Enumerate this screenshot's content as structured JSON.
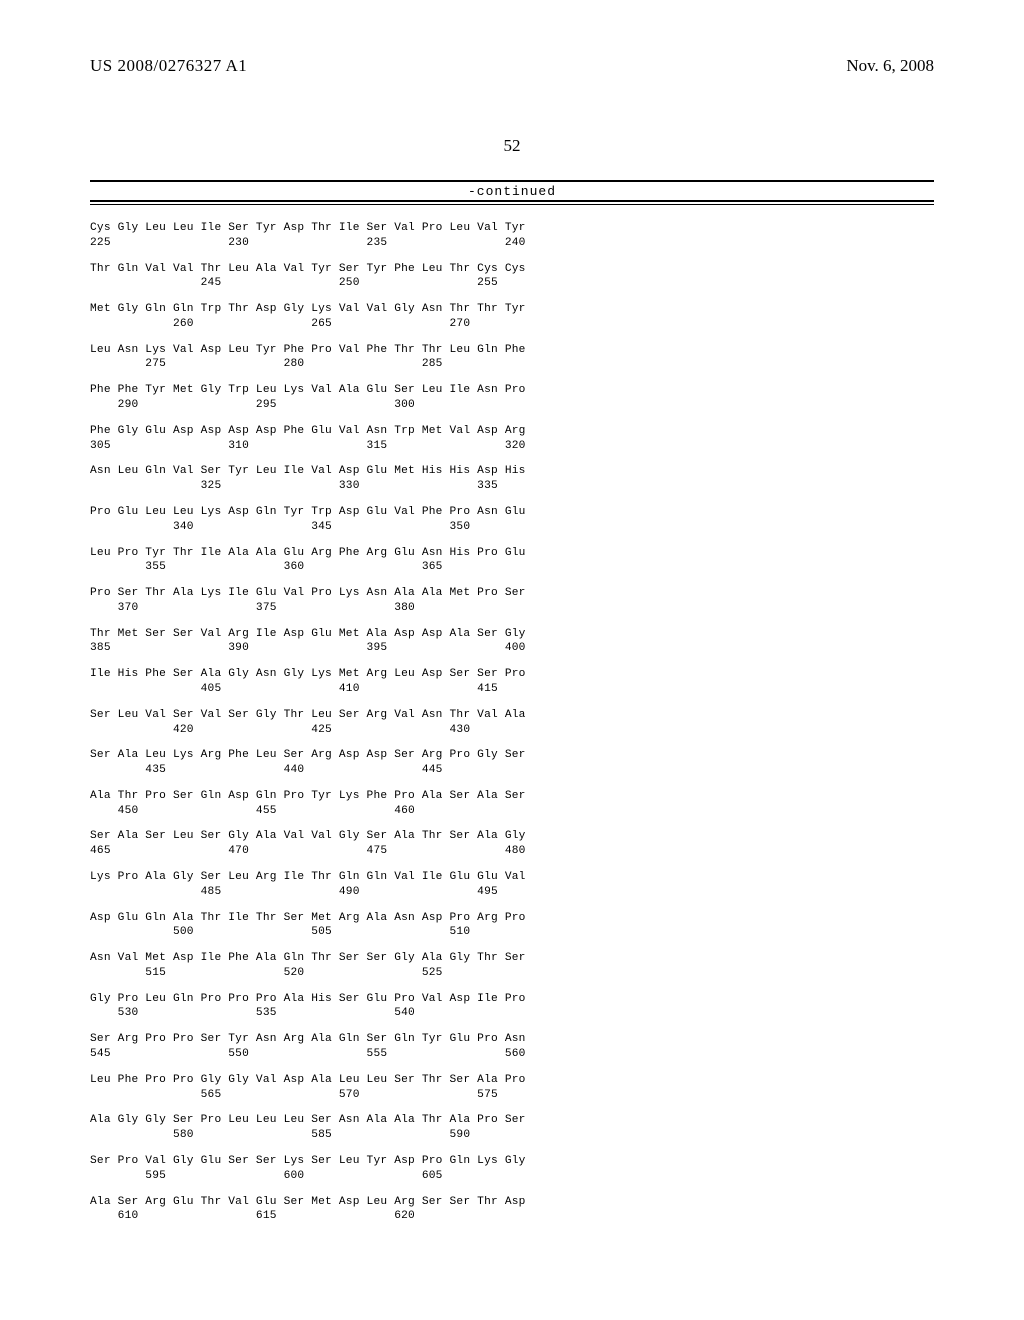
{
  "header": {
    "publication_number": "US 2008/0276327 A1",
    "publication_date": "Nov. 6, 2008"
  },
  "page_number": "52",
  "continued_label": "-continued",
  "sequence": {
    "columns": 16,
    "col_width_chars": 4,
    "rows": [
      {
        "start": 225,
        "aa": [
          "Cys",
          "Gly",
          "Leu",
          "Leu",
          "Ile",
          "Ser",
          "Tyr",
          "Asp",
          "Thr",
          "Ile",
          "Ser",
          "Val",
          "Pro",
          "Leu",
          "Val",
          "Tyr"
        ]
      },
      {
        "start": 241,
        "aa": [
          "Thr",
          "Gln",
          "Val",
          "Val",
          "Thr",
          "Leu",
          "Ala",
          "Val",
          "Tyr",
          "Ser",
          "Tyr",
          "Phe",
          "Leu",
          "Thr",
          "Cys",
          "Cys"
        ]
      },
      {
        "start": 257,
        "aa": [
          "Met",
          "Gly",
          "Gln",
          "Gln",
          "Trp",
          "Thr",
          "Asp",
          "Gly",
          "Lys",
          "Val",
          "Val",
          "Gly",
          "Asn",
          "Thr",
          "Thr",
          "Tyr"
        ]
      },
      {
        "start": 273,
        "aa": [
          "Leu",
          "Asn",
          "Lys",
          "Val",
          "Asp",
          "Leu",
          "Tyr",
          "Phe",
          "Pro",
          "Val",
          "Phe",
          "Thr",
          "Thr",
          "Leu",
          "Gln",
          "Phe"
        ]
      },
      {
        "start": 289,
        "aa": [
          "Phe",
          "Phe",
          "Tyr",
          "Met",
          "Gly",
          "Trp",
          "Leu",
          "Lys",
          "Val",
          "Ala",
          "Glu",
          "Ser",
          "Leu",
          "Ile",
          "Asn",
          "Pro"
        ]
      },
      {
        "start": 305,
        "aa": [
          "Phe",
          "Gly",
          "Glu",
          "Asp",
          "Asp",
          "Asp",
          "Asp",
          "Phe",
          "Glu",
          "Val",
          "Asn",
          "Trp",
          "Met",
          "Val",
          "Asp",
          "Arg"
        ]
      },
      {
        "start": 321,
        "aa": [
          "Asn",
          "Leu",
          "Gln",
          "Val",
          "Ser",
          "Tyr",
          "Leu",
          "Ile",
          "Val",
          "Asp",
          "Glu",
          "Met",
          "His",
          "His",
          "Asp",
          "His"
        ]
      },
      {
        "start": 337,
        "aa": [
          "Pro",
          "Glu",
          "Leu",
          "Leu",
          "Lys",
          "Asp",
          "Gln",
          "Tyr",
          "Trp",
          "Asp",
          "Glu",
          "Val",
          "Phe",
          "Pro",
          "Asn",
          "Glu"
        ]
      },
      {
        "start": 353,
        "aa": [
          "Leu",
          "Pro",
          "Tyr",
          "Thr",
          "Ile",
          "Ala",
          "Ala",
          "Glu",
          "Arg",
          "Phe",
          "Arg",
          "Glu",
          "Asn",
          "His",
          "Pro",
          "Glu"
        ]
      },
      {
        "start": 369,
        "aa": [
          "Pro",
          "Ser",
          "Thr",
          "Ala",
          "Lys",
          "Ile",
          "Glu",
          "Val",
          "Pro",
          "Lys",
          "Asn",
          "Ala",
          "Ala",
          "Met",
          "Pro",
          "Ser"
        ]
      },
      {
        "start": 385,
        "aa": [
          "Thr",
          "Met",
          "Ser",
          "Ser",
          "Val",
          "Arg",
          "Ile",
          "Asp",
          "Glu",
          "Met",
          "Ala",
          "Asp",
          "Asp",
          "Ala",
          "Ser",
          "Gly"
        ]
      },
      {
        "start": 401,
        "aa": [
          "Ile",
          "His",
          "Phe",
          "Ser",
          "Ala",
          "Gly",
          "Asn",
          "Gly",
          "Lys",
          "Met",
          "Arg",
          "Leu",
          "Asp",
          "Ser",
          "Ser",
          "Pro"
        ]
      },
      {
        "start": 417,
        "aa": [
          "Ser",
          "Leu",
          "Val",
          "Ser",
          "Val",
          "Ser",
          "Gly",
          "Thr",
          "Leu",
          "Ser",
          "Arg",
          "Val",
          "Asn",
          "Thr",
          "Val",
          "Ala"
        ]
      },
      {
        "start": 433,
        "aa": [
          "Ser",
          "Ala",
          "Leu",
          "Lys",
          "Arg",
          "Phe",
          "Leu",
          "Ser",
          "Arg",
          "Asp",
          "Asp",
          "Ser",
          "Arg",
          "Pro",
          "Gly",
          "Ser"
        ]
      },
      {
        "start": 449,
        "aa": [
          "Ala",
          "Thr",
          "Pro",
          "Ser",
          "Gln",
          "Asp",
          "Gln",
          "Pro",
          "Tyr",
          "Lys",
          "Phe",
          "Pro",
          "Ala",
          "Ser",
          "Ala",
          "Ser"
        ]
      },
      {
        "start": 465,
        "aa": [
          "Ser",
          "Ala",
          "Ser",
          "Leu",
          "Ser",
          "Gly",
          "Ala",
          "Val",
          "Val",
          "Gly",
          "Ser",
          "Ala",
          "Thr",
          "Ser",
          "Ala",
          "Gly"
        ]
      },
      {
        "start": 481,
        "aa": [
          "Lys",
          "Pro",
          "Ala",
          "Gly",
          "Ser",
          "Leu",
          "Arg",
          "Ile",
          "Thr",
          "Gln",
          "Gln",
          "Val",
          "Ile",
          "Glu",
          "Glu",
          "Val"
        ]
      },
      {
        "start": 497,
        "aa": [
          "Asp",
          "Glu",
          "Gln",
          "Ala",
          "Thr",
          "Ile",
          "Thr",
          "Ser",
          "Met",
          "Arg",
          "Ala",
          "Asn",
          "Asp",
          "Pro",
          "Arg",
          "Pro"
        ]
      },
      {
        "start": 513,
        "aa": [
          "Asn",
          "Val",
          "Met",
          "Asp",
          "Ile",
          "Phe",
          "Ala",
          "Gln",
          "Thr",
          "Ser",
          "Ser",
          "Gly",
          "Ala",
          "Gly",
          "Thr",
          "Ser"
        ]
      },
      {
        "start": 529,
        "aa": [
          "Gly",
          "Pro",
          "Leu",
          "Gln",
          "Pro",
          "Pro",
          "Pro",
          "Ala",
          "His",
          "Ser",
          "Glu",
          "Pro",
          "Val",
          "Asp",
          "Ile",
          "Pro"
        ]
      },
      {
        "start": 545,
        "aa": [
          "Ser",
          "Arg",
          "Pro",
          "Pro",
          "Ser",
          "Tyr",
          "Asn",
          "Arg",
          "Ala",
          "Gln",
          "Ser",
          "Gln",
          "Tyr",
          "Glu",
          "Pro",
          "Asn"
        ]
      },
      {
        "start": 561,
        "aa": [
          "Leu",
          "Phe",
          "Pro",
          "Pro",
          "Gly",
          "Gly",
          "Val",
          "Asp",
          "Ala",
          "Leu",
          "Leu",
          "Ser",
          "Thr",
          "Ser",
          "Ala",
          "Pro"
        ]
      },
      {
        "start": 577,
        "aa": [
          "Ala",
          "Gly",
          "Gly",
          "Ser",
          "Pro",
          "Leu",
          "Leu",
          "Leu",
          "Ser",
          "Asn",
          "Ala",
          "Ala",
          "Thr",
          "Ala",
          "Pro",
          "Ser"
        ]
      },
      {
        "start": 593,
        "aa": [
          "Ser",
          "Pro",
          "Val",
          "Gly",
          "Glu",
          "Ser",
          "Ser",
          "Lys",
          "Ser",
          "Leu",
          "Tyr",
          "Asp",
          "Pro",
          "Gln",
          "Lys",
          "Gly"
        ]
      },
      {
        "start": 609,
        "aa": [
          "Ala",
          "Ser",
          "Arg",
          "Glu",
          "Thr",
          "Val",
          "Glu",
          "Ser",
          "Met",
          "Asp",
          "Leu",
          "Arg",
          "Ser",
          "Ser",
          "Thr",
          "Asp"
        ]
      }
    ]
  }
}
